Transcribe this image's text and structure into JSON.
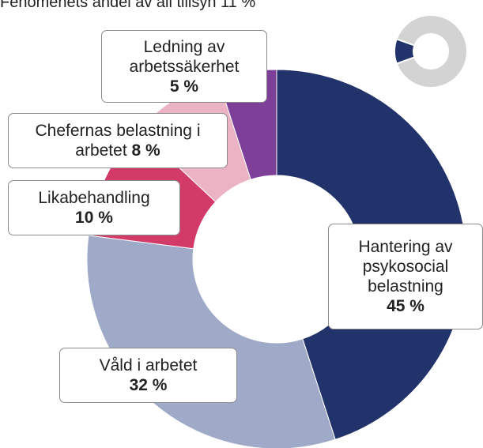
{
  "chart_data": {
    "type": "donut",
    "title": "Fenomenets andel av all tillsyn",
    "share": 11,
    "share_label": "11 %",
    "share_color": "#22336b",
    "rest_color": "#d3d3d3",
    "categories": [
      "Hantering av psykosocial belastning",
      "Våld i arbetet",
      "Likabehandling",
      "Chefernas belastning i arbetet",
      "Ledning av arbetssäkerhet"
    ],
    "values": [
      45,
      32,
      10,
      8,
      5
    ],
    "value_labels": [
      "45 %",
      "32 %",
      "10 %",
      "8 %",
      "5 %"
    ],
    "colors": [
      "#22336b",
      "#9fa9c8",
      "#d23a68",
      "#ebb3c3",
      "#7d3f98"
    ]
  }
}
